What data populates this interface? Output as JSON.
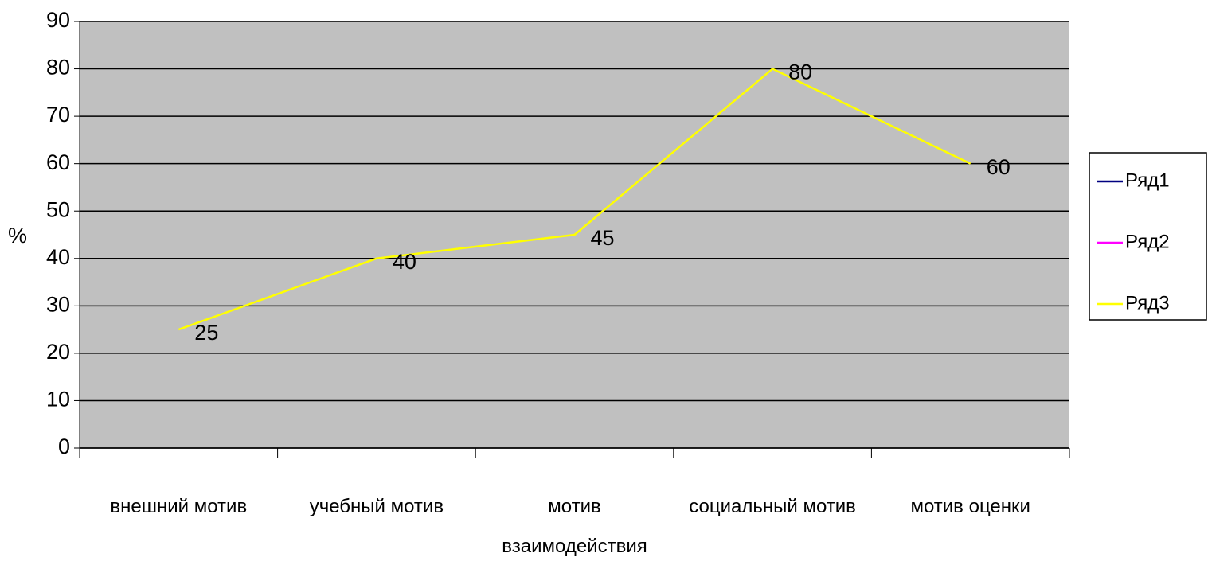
{
  "chart_data": {
    "type": "line",
    "y_label": "%",
    "categories": [
      "внешний мотив",
      "учебный мотив",
      "мотив взаимодействия",
      "социальный мотив",
      "мотив оценки"
    ],
    "series": [
      {
        "name": "Ряд1",
        "color": "#000080",
        "values": [
          null,
          null,
          null,
          null,
          null
        ]
      },
      {
        "name": "Ряд2",
        "color": "#ff00ff",
        "values": [
          null,
          null,
          null,
          null,
          null
        ]
      },
      {
        "name": "Ряд3",
        "color": "#ffff00",
        "values": [
          25,
          40,
          45,
          80,
          60
        ]
      }
    ],
    "ylim": [
      0,
      90
    ],
    "yticks": [
      0,
      10,
      20,
      30,
      40,
      50,
      60,
      70,
      80,
      90
    ],
    "grid": true,
    "data_labels": true,
    "legend": "right",
    "plot_background": "#c0c0c0"
  }
}
